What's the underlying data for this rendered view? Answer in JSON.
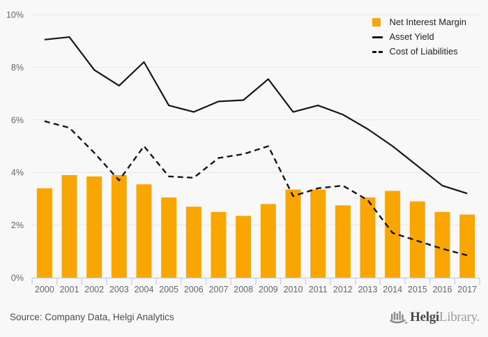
{
  "chart_data": {
    "type": "combo",
    "title": "",
    "xlabel": "",
    "ylabel": "",
    "categories": [
      "2000",
      "2001",
      "2002",
      "2003",
      "2004",
      "2005",
      "2006",
      "2007",
      "2008",
      "2009",
      "2010",
      "2011",
      "2012",
      "2013",
      "2014",
      "2015",
      "2016",
      "2017"
    ],
    "series": [
      {
        "name": "Net Interest Margin",
        "type": "bar",
        "color": "#F9A602",
        "values": [
          3.4,
          3.9,
          3.85,
          3.9,
          3.55,
          3.05,
          2.7,
          2.5,
          2.35,
          2.8,
          3.35,
          3.35,
          2.75,
          3.05,
          3.3,
          2.9,
          2.5,
          2.4
        ]
      },
      {
        "name": "Asset Yield",
        "type": "line",
        "line_style": "solid",
        "color": "#161616",
        "values": [
          9.05,
          9.15,
          7.9,
          7.3,
          8.2,
          6.55,
          6.3,
          6.7,
          6.75,
          7.55,
          6.3,
          6.55,
          6.2,
          5.65,
          5.0,
          4.25,
          3.5,
          3.2
        ]
      },
      {
        "name": "Cost of Liabilities",
        "type": "line",
        "line_style": "dashed",
        "color": "#161616",
        "values": [
          5.95,
          5.7,
          4.75,
          3.7,
          5.0,
          3.85,
          3.8,
          4.55,
          4.7,
          5.0,
          3.1,
          3.4,
          3.5,
          2.95,
          1.7,
          1.4,
          1.1,
          0.85
        ]
      }
    ],
    "ylim": [
      0,
      10
    ],
    "ytick_labels": [
      "0%",
      "2%",
      "4%",
      "6%",
      "8%",
      "10%"
    ],
    "grid": true,
    "legend_position": "top-right"
  },
  "colors": {
    "background": "#F8F8F8",
    "gridline": "#E6E6E6",
    "axis": "#C4CCE8",
    "tick_label": "#666666",
    "legend_text": "#222222",
    "source_text": "#4D4D4D",
    "logo": "#8A8A8A"
  },
  "footer": {
    "source_label": "Source: Company Data, Helgi Analytics"
  },
  "logo": {
    "brand_primary": "Helgi",
    "brand_secondary": "Library."
  }
}
